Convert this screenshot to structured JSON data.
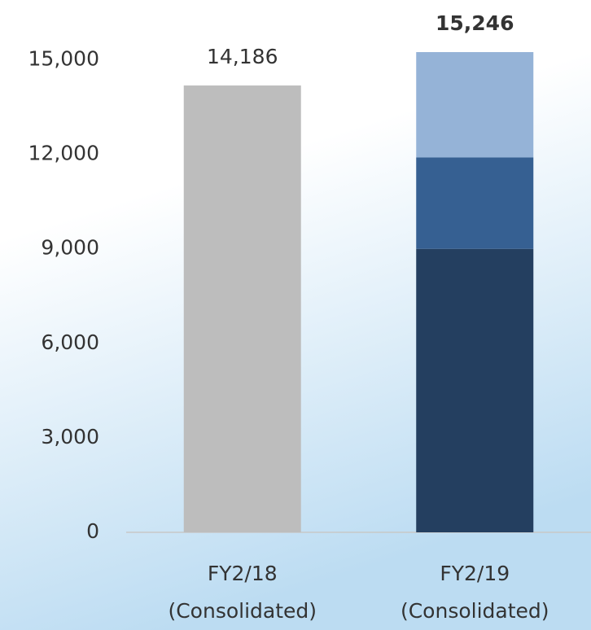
{
  "chart_data": {
    "type": "stacked_bar",
    "categories": [
      "FY2/18",
      "FY2/19"
    ],
    "category_sublabels": [
      "(Consolidated)",
      "(Consolidated)"
    ],
    "series": [
      {
        "color": "#bdbdbd",
        "values": [
          14186,
          null
        ]
      },
      {
        "color": "#243f60",
        "values": [
          null,
          9000
        ]
      },
      {
        "color": "#366092",
        "values": [
          null,
          2900
        ]
      },
      {
        "color": "#95b3d7",
        "values": [
          null,
          3346
        ]
      }
    ],
    "totals": [
      14186,
      15246
    ],
    "total_labels": [
      "14,186",
      "15,246"
    ],
    "ylim": [
      0,
      16900
    ],
    "yticks": [
      0,
      {
        "value": 3000,
        "label": "3,000"
      },
      {
        "value": 6000,
        "label": "6,000"
      },
      {
        "value": 9000,
        "label": "9,000"
      },
      {
        "value": 12000,
        "label": "12,000"
      },
      {
        "value": 15000,
        "label": "15,000"
      }
    ],
    "grid": false
  }
}
